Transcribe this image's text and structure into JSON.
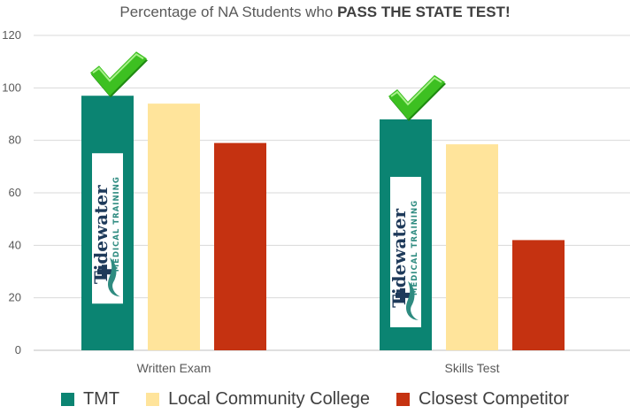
{
  "chart_data": {
    "type": "bar",
    "title_plain": "Percentage of NA Students who ",
    "title_bold": "PASS THE STATE TEST!",
    "categories": [
      "Written Exam",
      "Skills Test"
    ],
    "series": [
      {
        "name": "TMT",
        "values": [
          97,
          88
        ],
        "color": "#0b8472"
      },
      {
        "name": "Local Community College",
        "values": [
          94,
          78.5
        ],
        "color": "#ffe49b"
      },
      {
        "name": "Closest Competitor",
        "values": [
          79,
          42
        ],
        "color": "#c53211"
      }
    ],
    "ylim": [
      0,
      120
    ],
    "yticks": [
      0,
      20,
      40,
      60,
      80,
      100,
      120
    ],
    "grid": true,
    "legend_position": "bottom",
    "annotations": [
      {
        "type": "checkmark",
        "category": "Written Exam",
        "series": "TMT",
        "color": "#3dc021"
      },
      {
        "type": "checkmark",
        "category": "Skills Test",
        "series": "TMT",
        "color": "#3dc021"
      }
    ],
    "logo": {
      "category_series": "TMT",
      "lines": [
        "Tidewater",
        "MEDICAL TRAINING"
      ],
      "text_color": "#1e3a5a",
      "accent_color": "#2e8b80"
    }
  }
}
